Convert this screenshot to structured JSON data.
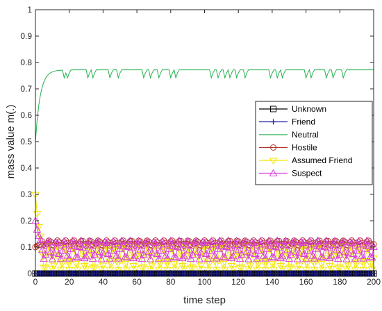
{
  "chart_data": {
    "type": "line",
    "title": "",
    "xlabel": "time step",
    "ylabel": "mass value m(.)",
    "xlim": [
      0,
      200
    ],
    "ylim": [
      0,
      1
    ],
    "xticks": [
      0,
      20,
      40,
      60,
      80,
      100,
      120,
      140,
      160,
      180,
      200
    ],
    "yticks": [
      0,
      0.1,
      0.2,
      0.3,
      0.4,
      0.5,
      0.6,
      0.7,
      0.8,
      0.9,
      1
    ],
    "xtick_labels": [
      "0",
      "20",
      "40",
      "60",
      "80",
      "100",
      "120",
      "140",
      "160",
      "180",
      "200"
    ],
    "ytick_labels": [
      "0",
      "0.1",
      "0.2",
      "0.3",
      "0.4",
      "0.5",
      "0.6",
      "0.7",
      "0.8",
      "0.9",
      "1"
    ],
    "grid": false,
    "legend_position": "right",
    "dip_steps": [
      17,
      19,
      31,
      34,
      44,
      49,
      64,
      68,
      73,
      80,
      83,
      104,
      108,
      112,
      115,
      119,
      124,
      139,
      143,
      146,
      160,
      163,
      172,
      176,
      182
    ],
    "series": [
      {
        "name": "Unknown",
        "color": "#000000",
        "marker": "square",
        "start": 0.0,
        "steady": 0.0
      },
      {
        "name": "Friend",
        "color": "#1a1aa8",
        "marker": "plus",
        "start": 0.0,
        "steady": 0.0
      },
      {
        "name": "Neutral",
        "color": "#22b14c",
        "marker": "none",
        "start": 0.5,
        "steady": 0.772
      },
      {
        "name": "Hostile",
        "color": "#b5322f",
        "marker": "circle",
        "start": 0.1,
        "steady": 0.115
      },
      {
        "name": "Assumed Friend",
        "color": "#f2e600",
        "marker": "triangle-down",
        "start": 0.3,
        "steady": 0.06
      },
      {
        "name": "Suspect",
        "color": "#d63fd6",
        "marker": "triangle-up",
        "start": 0.2,
        "steady": 0.09
      }
    ]
  }
}
